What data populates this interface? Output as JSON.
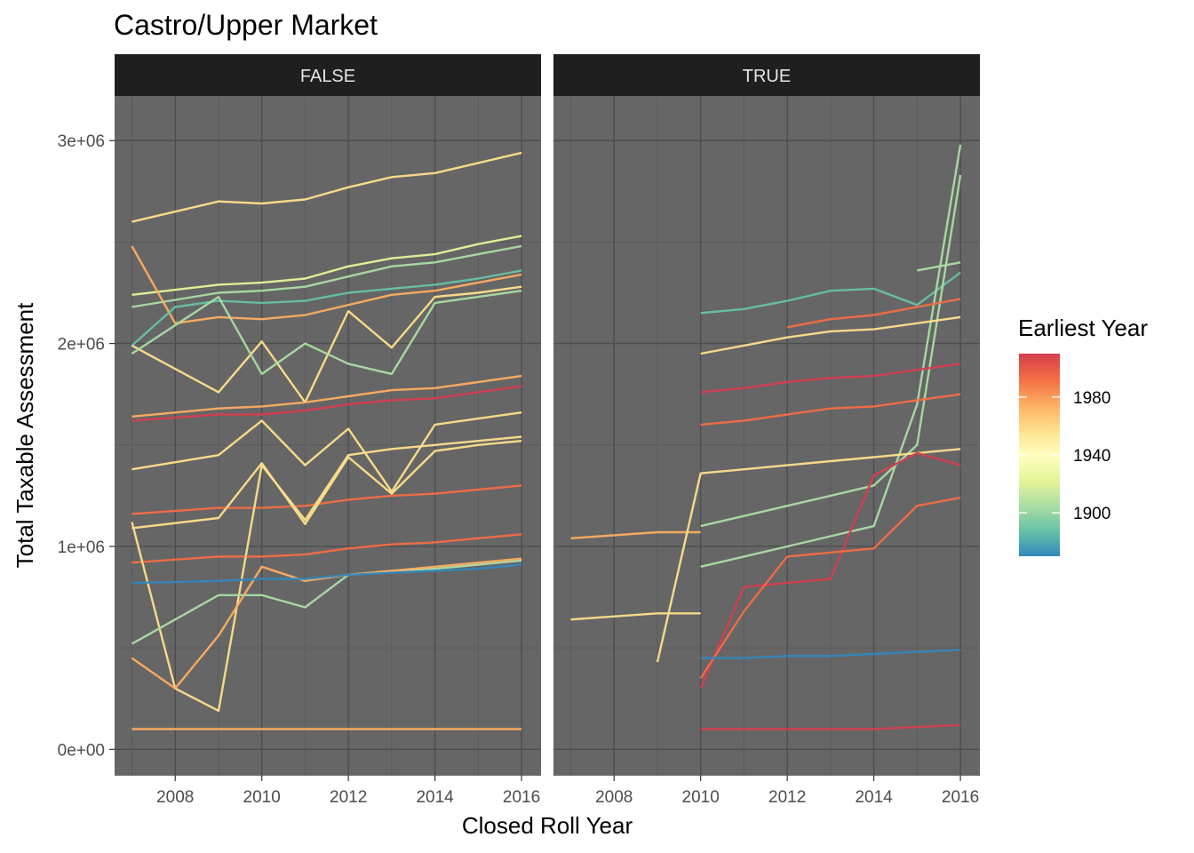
{
  "chart_data": {
    "type": "line",
    "title": "Castro/Upper Market",
    "xlabel": "Closed Roll Year",
    "ylabel": "Total Taxable Assessment",
    "xlim": [
      2006.6,
      2016.45
    ],
    "ylim": [
      -130000,
      3220000
    ],
    "x_ticks": [
      2008,
      2010,
      2012,
      2014,
      2016
    ],
    "y_ticks": [
      {
        "value": 0,
        "label": "0e+00"
      },
      {
        "value": 1000000,
        "label": "1e+06"
      },
      {
        "value": 2000000,
        "label": "2e+06"
      },
      {
        "value": 3000000,
        "label": "3e+06"
      }
    ],
    "grid": true,
    "panel_background": "#666666",
    "facets": [
      {
        "label": "FALSE",
        "series": [
          {
            "color": "#fee08b",
            "x": [
              2007,
              2009,
              2010,
              2011,
              2012,
              2013,
              2014,
              2015,
              2016
            ],
            "y": [
              2600000,
              2700000,
              2690000,
              2710000,
              2770000,
              2820000,
              2840000,
              2890000,
              2940000
            ]
          },
          {
            "color": "#e6f598",
            "x": [
              2007,
              2009,
              2010,
              2011,
              2012,
              2013,
              2014,
              2015,
              2016
            ],
            "y": [
              2240000,
              2290000,
              2300000,
              2320000,
              2380000,
              2420000,
              2440000,
              2490000,
              2530000
            ]
          },
          {
            "color": "#abdda4",
            "x": [
              2007,
              2009,
              2010,
              2011,
              2012,
              2013,
              2014,
              2015,
              2016
            ],
            "y": [
              2180000,
              2250000,
              2260000,
              2280000,
              2330000,
              2380000,
              2400000,
              2440000,
              2480000
            ]
          },
          {
            "color": "#fdae61",
            "x": [
              2007,
              2008,
              2009,
              2010,
              2011,
              2012,
              2013,
              2014,
              2015,
              2016
            ],
            "y": [
              2480000,
              2100000,
              2130000,
              2120000,
              2140000,
              2190000,
              2240000,
              2260000,
              2300000,
              2340000
            ]
          },
          {
            "color": "#66c2a5",
            "x": [
              2007,
              2008,
              2009,
              2010,
              2011,
              2012,
              2013,
              2014,
              2015,
              2016
            ],
            "y": [
              1990000,
              2180000,
              2210000,
              2200000,
              2210000,
              2250000,
              2270000,
              2290000,
              2320000,
              2360000
            ]
          },
          {
            "color": "#fee08b",
            "x": [
              2007,
              2009,
              2010,
              2011,
              2012,
              2013,
              2014,
              2015,
              2016
            ],
            "y": [
              1990000,
              1760000,
              2010000,
              1710000,
              2160000,
              1980000,
              2230000,
              2250000,
              2280000
            ]
          },
          {
            "color": "#abdda4",
            "x": [
              2007,
              2009,
              2010,
              2011,
              2012,
              2013,
              2014,
              2015,
              2016
            ],
            "y": [
              1950000,
              2230000,
              1850000,
              2000000,
              1900000,
              1850000,
              2200000,
              2230000,
              2260000
            ]
          },
          {
            "color": "#fdae61",
            "x": [
              2007,
              2009,
              2010,
              2011,
              2012,
              2013,
              2014,
              2015,
              2016
            ],
            "y": [
              1640000,
              1680000,
              1690000,
              1710000,
              1740000,
              1770000,
              1780000,
              1810000,
              1840000
            ]
          },
          {
            "color": "#fee08b",
            "x": [
              2007,
              2009,
              2010,
              2011,
              2012,
              2013,
              2014,
              2015,
              2016
            ],
            "y": [
              1380000,
              1450000,
              1620000,
              1400000,
              1580000,
              1270000,
              1600000,
              1630000,
              1660000
            ]
          },
          {
            "color": "#d53e4f",
            "x": [
              2007,
              2009,
              2010,
              2011,
              2012,
              2013,
              2014,
              2015,
              2016
            ],
            "y": [
              1620000,
              1650000,
              1650000,
              1670000,
              1700000,
              1720000,
              1730000,
              1760000,
              1790000
            ]
          },
          {
            "color": "#f46d43",
            "x": [
              2007,
              2009,
              2010,
              2011,
              2012,
              2013,
              2014,
              2015,
              2016
            ],
            "y": [
              1160000,
              1190000,
              1190000,
              1200000,
              1230000,
              1250000,
              1260000,
              1280000,
              1300000
            ]
          },
          {
            "color": "#f46d43",
            "x": [
              2007,
              2009,
              2010,
              2011,
              2012,
              2013,
              2014,
              2015,
              2016
            ],
            "y": [
              920000,
              950000,
              950000,
              960000,
              990000,
              1010000,
              1020000,
              1040000,
              1060000
            ]
          },
          {
            "color": "#fee08b",
            "x": [
              2007,
              2009,
              2010,
              2011,
              2012,
              2013,
              2014,
              2015,
              2016
            ],
            "y": [
              1090000,
              1140000,
              1410000,
              1110000,
              1440000,
              1260000,
              1470000,
              1500000,
              1520000
            ]
          },
          {
            "color": "#fee08b",
            "x": [
              2007,
              2008,
              2009,
              2010,
              2011,
              2012,
              2013,
              2014,
              2015,
              2016
            ],
            "y": [
              1120000,
              300000,
              190000,
              1400000,
              1130000,
              1450000,
              1480000,
              1500000,
              1520000,
              1540000
            ]
          },
          {
            "color": "#abdda4",
            "x": [
              2007,
              2009,
              2010,
              2011,
              2012,
              2013,
              2014,
              2015,
              2016
            ],
            "y": [
              520000,
              760000,
              760000,
              700000,
              860000,
              880000,
              890000,
              910000,
              930000
            ]
          },
          {
            "color": "#fdae61",
            "x": [
              2007,
              2008,
              2009,
              2010,
              2011,
              2012,
              2013,
              2014,
              2015,
              2016
            ],
            "y": [
              450000,
              300000,
              560000,
              900000,
              830000,
              860000,
              880000,
              900000,
              920000,
              940000
            ]
          },
          {
            "color": "#3288bd",
            "x": [
              2007,
              2009,
              2010,
              2011,
              2012,
              2013,
              2014,
              2015,
              2016
            ],
            "y": [
              820000,
              830000,
              840000,
              840000,
              860000,
              870000,
              880000,
              890000,
              910000
            ]
          },
          {
            "color": "#fdae61",
            "x": [
              2007,
              2009,
              2010,
              2011,
              2012,
              2013,
              2014,
              2015,
              2016
            ],
            "y": [
              100000,
              100000,
              100000,
              100000,
              100000,
              100000,
              100000,
              100000,
              100000
            ]
          }
        ]
      },
      {
        "label": "TRUE",
        "series": [
          {
            "color": "#66c2a5",
            "x": [
              2010,
              2011,
              2012,
              2013,
              2014,
              2015,
              2016
            ],
            "y": [
              2150000,
              2170000,
              2210000,
              2260000,
              2270000,
              2190000,
              2350000
            ]
          },
          {
            "color": "#abdda4",
            "x": [
              2015,
              2016
            ],
            "y": [
              2360000,
              2400000
            ]
          },
          {
            "color": "#abdda4",
            "x": [
              2010,
              2011,
              2012,
              2013,
              2014,
              2015,
              2016
            ],
            "y": [
              900000,
              950000,
              1000000,
              1050000,
              1100000,
              1700000,
              2980000
            ]
          },
          {
            "color": "#abdda4",
            "x": [
              2010,
              2011,
              2012,
              2013,
              2014,
              2015,
              2016
            ],
            "y": [
              1100000,
              1150000,
              1200000,
              1250000,
              1300000,
              1500000,
              2830000
            ]
          },
          {
            "color": "#f46d43",
            "x": [
              2012,
              2013,
              2014,
              2015,
              2016
            ],
            "y": [
              2080000,
              2120000,
              2140000,
              2180000,
              2220000
            ]
          },
          {
            "color": "#fee08b",
            "x": [
              2010,
              2011,
              2012,
              2013,
              2014,
              2015,
              2016
            ],
            "y": [
              1950000,
              1990000,
              2030000,
              2060000,
              2070000,
              2100000,
              2130000
            ]
          },
          {
            "color": "#d53e4f",
            "x": [
              2010,
              2011,
              2012,
              2013,
              2014,
              2015,
              2016
            ],
            "y": [
              1760000,
              1780000,
              1810000,
              1830000,
              1840000,
              1870000,
              1900000
            ]
          },
          {
            "color": "#f46d43",
            "x": [
              2010,
              2011,
              2012,
              2013,
              2014,
              2015,
              2016
            ],
            "y": [
              1600000,
              1620000,
              1650000,
              1680000,
              1690000,
              1720000,
              1750000
            ]
          },
          {
            "color": "#fdae61",
            "x": [
              2007,
              2009,
              2010
            ],
            "y": [
              1040000,
              1070000,
              1070000
            ]
          },
          {
            "color": "#fee08b",
            "x": [
              2007,
              2009,
              2010
            ],
            "y": [
              640000,
              670000,
              670000
            ]
          },
          {
            "color": "#fee08b",
            "x": [
              2009,
              2010,
              2011,
              2012,
              2013,
              2014,
              2015,
              2016
            ],
            "y": [
              430000,
              1360000,
              1380000,
              1400000,
              1420000,
              1440000,
              1460000,
              1480000
            ]
          },
          {
            "color": "#d53e4f",
            "x": [
              2010,
              2011,
              2012,
              2013,
              2014,
              2015,
              2016
            ],
            "y": [
              300000,
              800000,
              820000,
              840000,
              1350000,
              1460000,
              1400000
            ]
          },
          {
            "color": "#f46d43",
            "x": [
              2010,
              2011,
              2012,
              2013,
              2014,
              2015,
              2016
            ],
            "y": [
              350000,
              680000,
              950000,
              970000,
              990000,
              1200000,
              1240000
            ]
          },
          {
            "color": "#3288bd",
            "x": [
              2010,
              2011,
              2012,
              2013,
              2014,
              2015,
              2016
            ],
            "y": [
              450000,
              450000,
              460000,
              460000,
              470000,
              480000,
              490000
            ]
          },
          {
            "color": "#d53e4f",
            "x": [
              2010,
              2011,
              2012,
              2013,
              2014,
              2015,
              2016
            ],
            "y": [
              100000,
              100000,
              100000,
              100000,
              100000,
              110000,
              120000
            ]
          }
        ]
      }
    ],
    "legend": {
      "title": "Earliest Year",
      "type": "colorbar",
      "position": "right",
      "range": [
        1870,
        2010
      ],
      "ticks": [
        {
          "value": 1900,
          "label": "1900"
        },
        {
          "value": 1940,
          "label": "1940"
        },
        {
          "value": 1980,
          "label": "1980"
        }
      ],
      "palette": [
        "#3288bd",
        "#66c2a5",
        "#abdda4",
        "#e6f598",
        "#ffffbf",
        "#fee08b",
        "#fdae61",
        "#f46d43",
        "#d53e4f"
      ]
    }
  }
}
